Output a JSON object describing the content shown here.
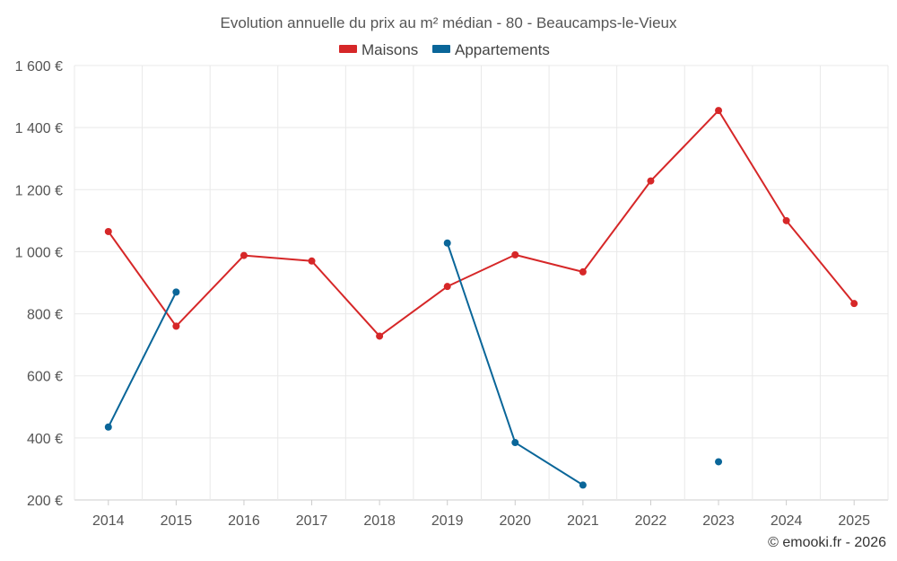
{
  "chart_data": {
    "type": "line",
    "title": "Evolution annuelle du prix au m² médian - 80 - Beaucamps-le-Vieux",
    "categories": [
      "2014",
      "2015",
      "2016",
      "2017",
      "2018",
      "2019",
      "2020",
      "2021",
      "2022",
      "2023",
      "2024",
      "2025"
    ],
    "ylim": [
      200,
      1600
    ],
    "yticks": [
      200,
      400,
      600,
      800,
      1000,
      1200,
      1400,
      1600
    ],
    "ytick_labels": [
      "200 €",
      "400 €",
      "600 €",
      "800 €",
      "1 000 €",
      "1 200 €",
      "1 400 €",
      "1 600 €"
    ],
    "xlabel": "",
    "ylabel": "",
    "grid": true,
    "legend_position": "top-center",
    "series": [
      {
        "name": "Maisons",
        "color": "#d62728",
        "values": [
          1065,
          760,
          988,
          970,
          728,
          888,
          990,
          935,
          1228,
          1455,
          1100,
          833
        ]
      },
      {
        "name": "Appartements",
        "color": "#0a6699",
        "values": [
          435,
          870,
          null,
          null,
          null,
          1028,
          385,
          248,
          null,
          323,
          null,
          null
        ]
      }
    ]
  },
  "credit": "© emooki.fr - 2026"
}
